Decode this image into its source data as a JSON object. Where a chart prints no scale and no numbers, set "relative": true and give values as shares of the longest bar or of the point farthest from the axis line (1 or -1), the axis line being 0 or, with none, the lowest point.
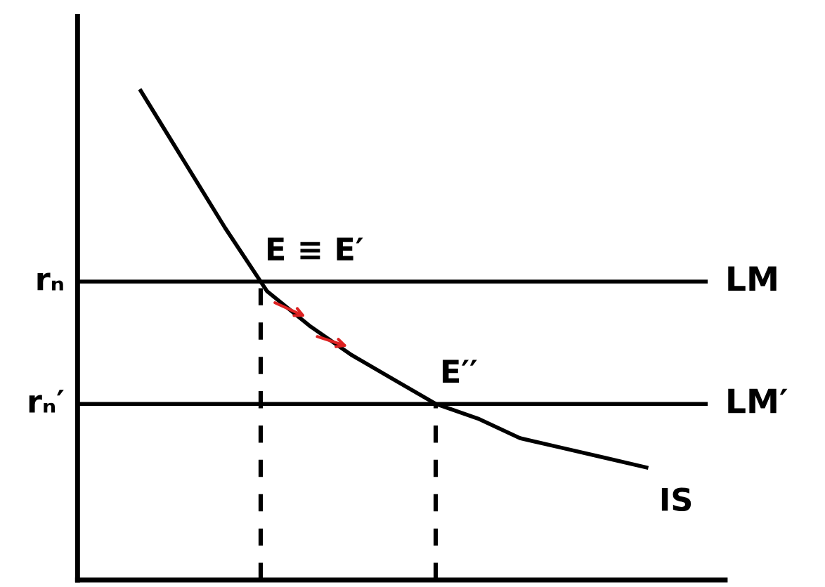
{
  "chart_data": {
    "type": "line",
    "relative": true,
    "categories": [
      null,
      null,
      null,
      null,
      null,
      null,
      null,
      null,
      null,
      null,
      null,
      null,
      null
    ],
    "series": [
      {
        "color": "#000000",
        "values": [
          1.0,
          0.86,
          0.72,
          0.59,
          0.52,
          0.46,
          0.41,
          0.36,
          0.33,
          0.29,
          0.27,
          0.25,
          0.23
        ]
      }
    ],
    "ref_lines": [
      {
        "axis": "y",
        "value": 0.61,
        "label": "LM",
        "color": "#000000"
      },
      {
        "axis": "y",
        "value": 0.36,
        "label": "LM′",
        "color": "#000000"
      }
    ],
    "annotations": [
      "rₙ",
      "rₙ′",
      "E ≡ E′",
      "E′′",
      "IS"
    ]
  }
}
